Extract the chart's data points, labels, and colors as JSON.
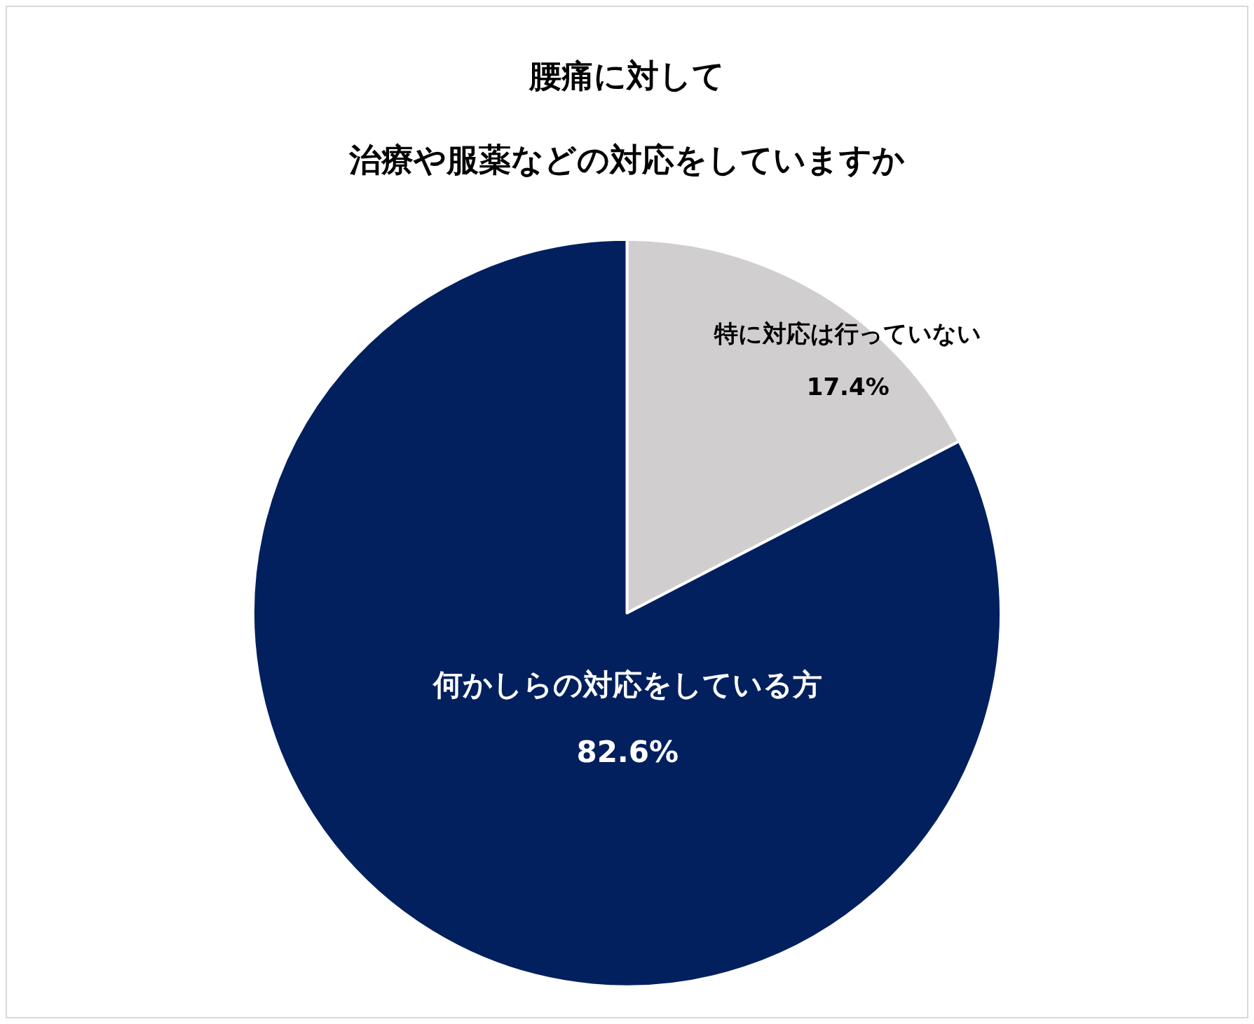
{
  "chart_data": {
    "type": "pie",
    "title": "腰痛に対して",
    "subtitle": "治療や服薬などの対応をしていますか",
    "categories": [
      "特に対応は行っていない",
      "何かしらの対応をしている方"
    ],
    "values": [
      17.4,
      82.6
    ],
    "value_labels": [
      "17.4%",
      "82.6%"
    ],
    "colors": [
      "#d0cecf",
      "#02205e"
    ],
    "legend": false
  }
}
